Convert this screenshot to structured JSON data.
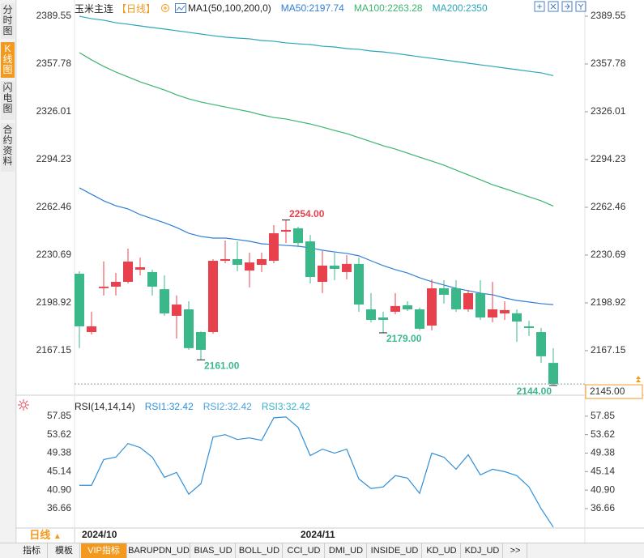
{
  "sidebar": {
    "tabs": [
      "分时图",
      "K线图",
      "闪电图",
      "合约资料"
    ],
    "active": 1
  },
  "chart_data": [
    {
      "type": "candlestick",
      "title": "玉米主连",
      "period": "【日线】",
      "indicator": "MA1(50,100,200,0)",
      "up_color": "#e8414e",
      "down_color": "#3bb88a",
      "open": [
        2218.3,
        2179.5,
        2208.7,
        2209.7,
        2212.9,
        2221.0,
        2219.4,
        2208.0,
        2190.3,
        2194.6,
        2179.5,
        2179.5,
        2226.9,
        2228.0,
        2220.4,
        2224.2,
        2226.9,
        2246.3,
        2248.5,
        2239.8,
        2212.9,
        2223.7,
        2219.4,
        2224.8,
        2194.6,
        2189.2,
        2193.0,
        2197.3,
        2194.6,
        2183.8,
        2208.6,
        2208.6,
        2194.6,
        2205.4,
        2189.2,
        2191.9,
        2192.0,
        2183.3,
        2179.5,
        2159.0
      ],
      "high": [
        2219.9,
        2193.0,
        2226.4,
        2218.8,
        2235.0,
        2229.0,
        2221.0,
        2217.2,
        2203.8,
        2200.0,
        2180.0,
        2228.0,
        2240.4,
        2239.8,
        2232.3,
        2232.3,
        2250.6,
        2254.0,
        2249.5,
        2244.1,
        2233.4,
        2232.3,
        2230.7,
        2229.0,
        2205.4,
        2193.0,
        2205.4,
        2200.0,
        2195.7,
        2214.5,
        2214.0,
        2214.0,
        2207.5,
        2214.0,
        2213.0,
        2200.0,
        2194.6,
        2187.0,
        2182.2,
        2168.8
      ],
      "low": [
        2168.8,
        2177.9,
        2203.8,
        2203.8,
        2211.8,
        2217.2,
        2203.8,
        2190.3,
        2175.2,
        2167.7,
        2161.0,
        2178.4,
        2225.3,
        2219.9,
        2209.2,
        2219.4,
        2225.3,
        2238.7,
        2236.0,
        2211.8,
        2205.4,
        2214.0,
        2214.5,
        2193.0,
        2186.0,
        2179.0,
        2191.4,
        2193.5,
        2180.6,
        2180.6,
        2198.4,
        2193.0,
        2193.0,
        2187.6,
        2186.0,
        2187.6,
        2173.0,
        2176.8,
        2159.0,
        2144.0
      ],
      "close": [
        2183.3,
        2183.3,
        2209.7,
        2212.9,
        2226.4,
        2222.6,
        2209.7,
        2191.9,
        2197.8,
        2168.8,
        2167.7,
        2226.9,
        2228.0,
        2224.2,
        2225.8,
        2228.0,
        2245.2,
        2247.4,
        2238.7,
        2216.1,
        2223.7,
        2221.5,
        2224.8,
        2197.8,
        2187.6,
        2187.6,
        2196.8,
        2194.6,
        2181.7,
        2208.6,
        2204.3,
        2194.6,
        2205.4,
        2189.2,
        2194.6,
        2194.1,
        2186.5,
        2182.2,
        2163.4,
        2145.0
      ],
      "series": [
        {
          "name": "MA50:2197.74",
          "color": "#2f7fd6",
          "values": [
            2275.4,
            2271.1,
            2266.8,
            2263.5,
            2261.4,
            2257.6,
            2254.9,
            2252.2,
            2249.0,
            2245.2,
            2243.1,
            2242.0,
            2242.0,
            2241.0,
            2239.9,
            2238.2,
            2237.7,
            2237.1,
            2236.6,
            2235.5,
            2233.9,
            2232.8,
            2231.8,
            2230.2,
            2226.9,
            2223.7,
            2221.0,
            2218.8,
            2215.6,
            2213.0,
            2210.8,
            2208.6,
            2207.0,
            2205.4,
            2204.3,
            2202.2,
            2200.5,
            2199.5,
            2198.4,
            2197.74
          ]
        },
        {
          "name": "MA100:2263.28",
          "color": "#3bb56d",
          "values": [
            2365.3,
            2360.5,
            2356.2,
            2352.4,
            2349.2,
            2345.9,
            2343.2,
            2340.5,
            2337.3,
            2334.6,
            2332.5,
            2330.8,
            2329.2,
            2327.6,
            2326.0,
            2323.9,
            2322.2,
            2321.2,
            2319.5,
            2317.9,
            2315.8,
            2313.6,
            2311.5,
            2308.8,
            2306.1,
            2303.4,
            2301.2,
            2298.5,
            2295.8,
            2293.2,
            2290.5,
            2287.2,
            2284.0,
            2280.8,
            2277.5,
            2274.9,
            2272.2,
            2269.5,
            2266.8,
            2263.28
          ]
        },
        {
          "name": "MA200:2350",
          "color": "#2aa6b8",
          "values": [
            2389.5,
            2387.9,
            2386.9,
            2385.2,
            2384.2,
            2383.1,
            2382.0,
            2381.0,
            2379.9,
            2378.8,
            2377.7,
            2376.6,
            2375.6,
            2375.0,
            2374.5,
            2373.4,
            2372.9,
            2371.8,
            2371.2,
            2370.7,
            2369.6,
            2369.1,
            2368.0,
            2367.5,
            2366.4,
            2365.8,
            2364.8,
            2363.7,
            2362.6,
            2361.5,
            2360.5,
            2359.4,
            2358.3,
            2357.2,
            2356.2,
            2355.1,
            2354.0,
            2352.9,
            2351.9,
            2350
          ]
        }
      ],
      "annotations": [
        {
          "value": 2254,
          "label": "2254.00",
          "color": "#e8414e"
        },
        {
          "value": 2161,
          "label": "2161.00",
          "color": "#3bb88a"
        },
        {
          "value": 2179,
          "label": "2179.00",
          "color": "#3bb88a"
        },
        {
          "value": 2144,
          "label": "2144.00",
          "color": "#3bb88a"
        }
      ],
      "last_price": {
        "value": 2145,
        "label": "2145.00",
        "color": "#f39a1e"
      },
      "ylim": [
        2137.5,
        2393.86
      ],
      "yticks": [
        2389.55,
        2357.78,
        2326.01,
        2294.23,
        2262.46,
        2230.69,
        2198.92,
        2167.15
      ]
    },
    {
      "type": "line",
      "title": "RSI(14,14,14)",
      "categories": [
        "2024/10",
        null,
        null,
        null,
        null,
        null,
        null,
        null,
        null,
        null,
        null,
        null,
        null,
        null,
        null,
        null,
        null,
        null,
        "2024/11",
        null,
        null,
        null,
        null,
        null,
        null,
        null,
        null,
        null,
        null,
        null,
        null,
        null,
        null,
        null,
        null,
        null,
        null,
        null,
        null,
        null
      ],
      "series": [
        {
          "name": "RSI1:32.42",
          "color": "#2f8fd8",
          "values": [
            42.0,
            42.0,
            47.9,
            48.45,
            51.58,
            50.66,
            48.45,
            43.84,
            44.95,
            39.97,
            42.37,
            53.06,
            53.61,
            52.5,
            52.87,
            52.32,
            57.48,
            57.67,
            55.27,
            48.82,
            50.29,
            49.37,
            50.29,
            43.47,
            41.26,
            41.63,
            44.21,
            43.66,
            40.15,
            49.37,
            48.45,
            45.68,
            49.0,
            44.39,
            45.68,
            45.13,
            44.21,
            41.63,
            36.65,
            32.42
          ]
        },
        {
          "name": "RSI2:32.42",
          "color": "#4aa3e0"
        },
        {
          "name": "RSI3:32.42",
          "color": "#38b2c8"
        }
      ],
      "ylim": [
        32.2,
        59.5
      ],
      "yticks": [
        57.85,
        53.62,
        49.38,
        45.14,
        {
          "value": 40.9,
          "label": "40.90"
        },
        36.66
      ]
    }
  ],
  "toolbar": {
    "period": "日线",
    "tabs": [
      "指标",
      "模板",
      "VIP指标",
      "BARUPDN_UD",
      "BIAS_UD",
      "BOLL_UD",
      "CCI_UD",
      "DMI_UD",
      "INSIDE_UD",
      "KD_UD",
      "KDJ_UD",
      ">>"
    ],
    "active": 2
  }
}
